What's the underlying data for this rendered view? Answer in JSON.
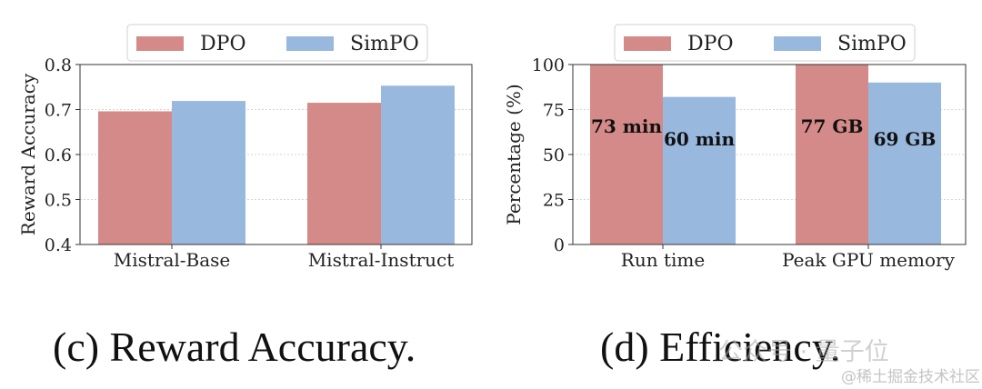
{
  "colors": {
    "dpo": "#d48a88",
    "simpo": "#99b8de",
    "grid": "#c9c9c9",
    "axis": "#333333"
  },
  "chart_data": [
    {
      "type": "bar",
      "title": "",
      "xlabel": "",
      "ylabel": "Reward Accuracy",
      "categories": [
        "Mistral-Base",
        "Mistral-Instruct"
      ],
      "series": [
        {
          "name": "DPO",
          "values": [
            0.696,
            0.715
          ]
        },
        {
          "name": "SimPO",
          "values": [
            0.719,
            0.753
          ]
        }
      ],
      "ylim": [
        0.4,
        0.8
      ],
      "yticks": [
        "0.4",
        "0.5",
        "0.6",
        "0.7",
        "0.8"
      ],
      "grid": true,
      "legend": "top-center",
      "caption": "(c) Reward Accuracy."
    },
    {
      "type": "bar",
      "title": "",
      "xlabel": "",
      "ylabel": "Percentage (%)",
      "categories": [
        "Run time",
        "Peak GPU memory"
      ],
      "series": [
        {
          "name": "DPO",
          "values": [
            100,
            100
          ],
          "labels": [
            "73 min",
            "77 GB"
          ]
        },
        {
          "name": "SimPO",
          "values": [
            82,
            90
          ],
          "labels": [
            "60 min",
            "69 GB"
          ]
        }
      ],
      "ylim": [
        0,
        100
      ],
      "yticks": [
        "0",
        "25",
        "50",
        "75",
        "100"
      ],
      "grid": true,
      "legend": "top-center",
      "caption": "(d) Efficiency."
    }
  ],
  "watermark": {
    "line1": "公众号 · 量子位",
    "line2": "@稀土掘金技术社区"
  }
}
